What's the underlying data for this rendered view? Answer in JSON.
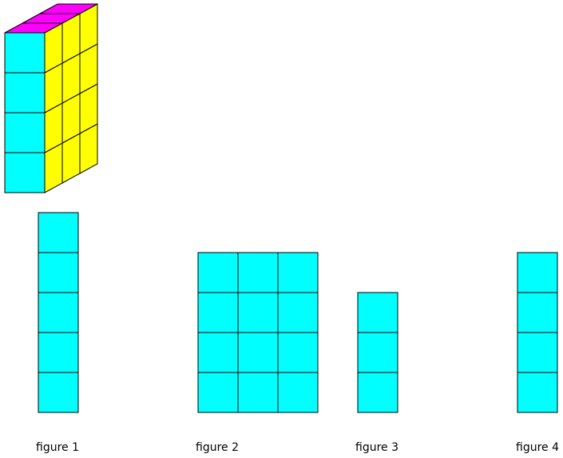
{
  "colors": {
    "front": "#00ffff",
    "side": "#ffff00",
    "top": "#ff00ff",
    "stroke": "#000000"
  },
  "prism": {
    "columns": 1,
    "depth": 3,
    "layers": 4
  },
  "figures": [
    {
      "label": "figure 1",
      "columns": 1,
      "rows": 5
    },
    {
      "label": "figure 2",
      "columns": 3,
      "rows": 4
    },
    {
      "label": "figure 3",
      "columns": 1,
      "rows": 3
    },
    {
      "label": "figure 4",
      "columns": 1,
      "rows": 4
    }
  ]
}
